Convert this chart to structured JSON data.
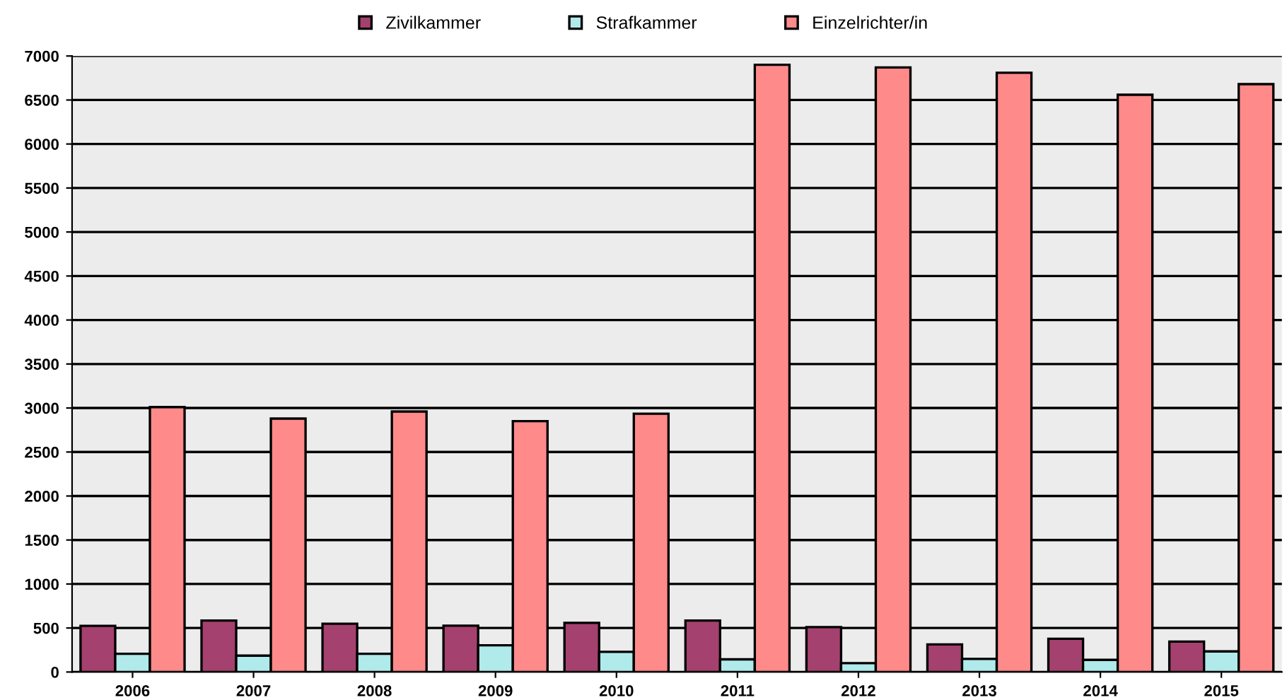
{
  "chart_data": {
    "type": "bar",
    "categories": [
      "2006",
      "2007",
      "2008",
      "2009",
      "2010",
      "2011",
      "2012",
      "2013",
      "2014",
      "2015"
    ],
    "series": [
      {
        "name": "Zivilkammer",
        "color": "#a4416e",
        "values": [
          525,
          585,
          548,
          527,
          558,
          585,
          510,
          314,
          378,
          346
        ]
      },
      {
        "name": "Strafkammer",
        "color": "#b0eaea",
        "values": [
          207,
          186,
          207,
          303,
          229,
          144,
          100,
          149,
          138,
          234
        ]
      },
      {
        "name": "Einzelrichter/in",
        "color": "#ff8a8a",
        "values": [
          3010,
          2880,
          2960,
          2850,
          2935,
          6900,
          6870,
          6810,
          6560,
          6680
        ]
      }
    ],
    "ylim": [
      0,
      7000
    ],
    "yticks": [
      0,
      500,
      1000,
      1500,
      2000,
      2500,
      3000,
      3500,
      4000,
      4500,
      5000,
      5500,
      6000,
      6500,
      7000
    ],
    "grid": "y",
    "legend": "top"
  }
}
